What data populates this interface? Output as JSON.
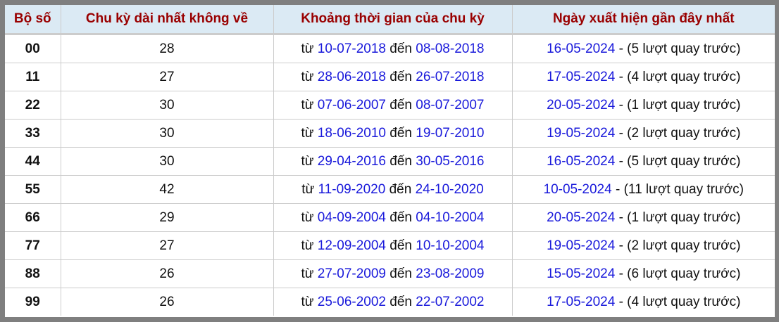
{
  "headers": [
    "Bộ số",
    "Chu kỳ dài nhất không về",
    "Khoảng thời gian của chu kỳ",
    "Ngày xuất hiện gần đây nhất"
  ],
  "labels": {
    "from": "từ",
    "to": "đến",
    "sep": "-"
  },
  "link_color": "#1a1adb",
  "header_text_color": "#990000",
  "rows": [
    {
      "num": "00",
      "cycle": "28",
      "start": "10-07-2018",
      "end": "08-08-2018",
      "last": "16-05-2024",
      "ago": "(5 lượt quay trước)"
    },
    {
      "num": "11",
      "cycle": "27",
      "start": "28-06-2018",
      "end": "26-07-2018",
      "last": "17-05-2024",
      "ago": "(4 lượt quay trước)"
    },
    {
      "num": "22",
      "cycle": "30",
      "start": "07-06-2007",
      "end": "08-07-2007",
      "last": "20-05-2024",
      "ago": "(1 lượt quay trước)"
    },
    {
      "num": "33",
      "cycle": "30",
      "start": "18-06-2010",
      "end": "19-07-2010",
      "last": "19-05-2024",
      "ago": "(2 lượt quay trước)"
    },
    {
      "num": "44",
      "cycle": "30",
      "start": "29-04-2016",
      "end": "30-05-2016",
      "last": "16-05-2024",
      "ago": "(5 lượt quay trước)"
    },
    {
      "num": "55",
      "cycle": "42",
      "start": "11-09-2020",
      "end": "24-10-2020",
      "last": "10-05-2024",
      "ago": "(11 lượt quay trước)"
    },
    {
      "num": "66",
      "cycle": "29",
      "start": "04-09-2004",
      "end": "04-10-2004",
      "last": "20-05-2024",
      "ago": "(1 lượt quay trước)"
    },
    {
      "num": "77",
      "cycle": "27",
      "start": "12-09-2004",
      "end": "10-10-2004",
      "last": "19-05-2024",
      "ago": "(2 lượt quay trước)"
    },
    {
      "num": "88",
      "cycle": "26",
      "start": "27-07-2009",
      "end": "23-08-2009",
      "last": "15-05-2024",
      "ago": "(6 lượt quay trước)"
    },
    {
      "num": "99",
      "cycle": "26",
      "start": "25-06-2002",
      "end": "22-07-2002",
      "last": "17-05-2024",
      "ago": "(4 lượt quay trước)"
    }
  ]
}
